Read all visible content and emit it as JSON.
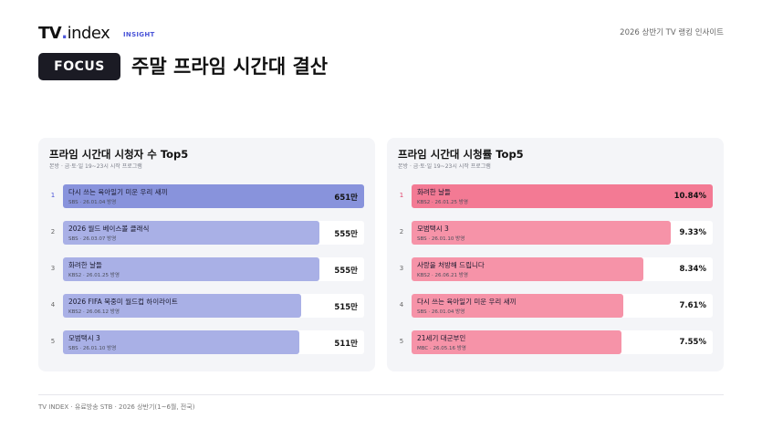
{
  "header": {
    "logo_main": "TV",
    "logo_dot": ".",
    "logo_suffix": "index",
    "badge": "INSIGHT",
    "top_right": "2026 상반기 TV 랭킹 인사이트",
    "focus_label": "FOCUS",
    "title": "주말 프라임 시간대 결산"
  },
  "colors": {
    "left_top_bar": "#8893dc",
    "left_bar": "#a9b0e6",
    "right_top_bar": "#f37a94",
    "right_bar": "#f693a8"
  },
  "chart_data": [
    {
      "type": "bar",
      "title": "프라임 시간대 시청자 수 Top5",
      "subtitle": "본방 · 금·토·일 19~23시 시작 프로그램",
      "categories": [
        "다시 쓰는 육아일기 미운 우리 새끼",
        "2026 월드 베이스볼 클래식",
        "화려한 날들",
        "2026 FIFA 북중미 월드컵 하이라이트",
        "모범택시 3"
      ],
      "meta": [
        "SBS · 26.01.04 방영",
        "SBS · 26.03.07 방영",
        "KBS2 · 26.01.25 방영",
        "KBS2 · 26.06.12 방영",
        "SBS · 26.01.10 방영"
      ],
      "ranks": [
        "1",
        "2",
        "3",
        "4",
        "5"
      ],
      "values": [
        651,
        555,
        555,
        515,
        511
      ],
      "value_labels": [
        "651만",
        "555만",
        "555만",
        "515만",
        "511만"
      ],
      "unit": "만",
      "xlim": [
        0,
        651
      ]
    },
    {
      "type": "bar",
      "title": "프라임 시간대 시청률 Top5",
      "subtitle": "본방 · 금·토·일 19~23시 시작 프로그램",
      "categories": [
        "화려한 날들",
        "모범택시 3",
        "사랑을 처방해 드립니다",
        "다시 쓰는 육아일기 미운 우리 새끼",
        "21세기 대군부인"
      ],
      "meta": [
        "KBS2 · 26.01.25 방영",
        "SBS · 26.01.10 방영",
        "KBS2 · 26.06.21 방영",
        "SBS · 26.01.04 방영",
        "MBC · 26.05.16 방영"
      ],
      "ranks": [
        "1",
        "2",
        "3",
        "4",
        "5"
      ],
      "values": [
        10.84,
        9.33,
        8.34,
        7.61,
        7.55
      ],
      "value_labels": [
        "10.84%",
        "9.33%",
        "8.34%",
        "7.61%",
        "7.55%"
      ],
      "unit": "%",
      "xlim": [
        0,
        10.84
      ]
    }
  ],
  "footer": "TV INDEX · 유료방송 STB · 2026 상반기(1~6월, 전국)"
}
